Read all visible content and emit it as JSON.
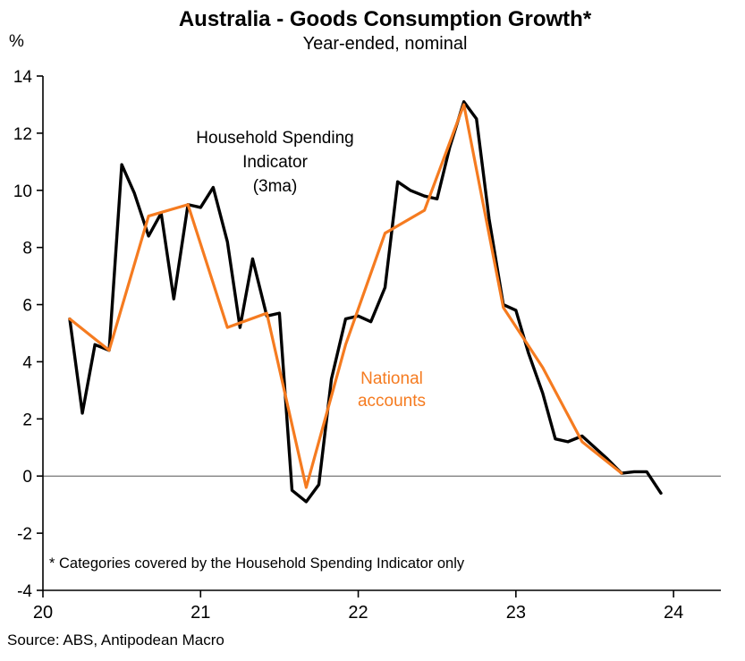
{
  "header": {
    "title": "Australia - Goods Consumption Growth*",
    "subtitle": "Year-ended, nominal",
    "y_unit": "%"
  },
  "annotations": {
    "household_label": "Household Spending Indicator",
    "household_sub": "(3ma)",
    "national_label": "National accounts",
    "footnote": "* Categories covered by the Household Spending Indicator only"
  },
  "source": "Source: ABS, Antipodean Macro",
  "colors": {
    "household_series": "#000000",
    "national_series": "#f57b20",
    "axis": "#000000",
    "zero_line": "#555555"
  },
  "chart_data": {
    "type": "line",
    "title": "Australia - Goods Consumption Growth*",
    "subtitle": "Year-ended, nominal",
    "xlabel": "",
    "ylabel": "%",
    "xlim": [
      20,
      24.3
    ],
    "ylim": [
      -4,
      14
    ],
    "xticks": [
      20,
      21,
      22,
      23,
      24
    ],
    "yticks": [
      -4,
      -2,
      0,
      2,
      4,
      6,
      8,
      10,
      12,
      14
    ],
    "grid": false,
    "zero_line": true,
    "legend_position": "inline-annotations",
    "series": [
      {
        "id": "household-spending-indicator",
        "name": "Household Spending Indicator (3ma)",
        "color": "#000000",
        "width": 3.4,
        "x": [
          20.17,
          20.25,
          20.33,
          20.42,
          20.5,
          20.58,
          20.67,
          20.75,
          20.83,
          20.92,
          21.0,
          21.08,
          21.17,
          21.25,
          21.33,
          21.42,
          21.5,
          21.58,
          21.67,
          21.75,
          21.83,
          21.92,
          22.0,
          22.08,
          22.17,
          22.25,
          22.33,
          22.42,
          22.5,
          22.58,
          22.67,
          22.75,
          22.83,
          22.92,
          23.0,
          23.08,
          23.17,
          23.25,
          23.33,
          23.42,
          23.5,
          23.58,
          23.67,
          23.75,
          23.83,
          23.92
        ],
        "values": [
          5.5,
          2.2,
          4.6,
          4.4,
          10.9,
          9.9,
          8.4,
          9.2,
          6.2,
          9.5,
          9.4,
          10.1,
          8.2,
          5.2,
          7.6,
          5.6,
          5.7,
          -0.5,
          -0.9,
          -0.3,
          3.4,
          5.5,
          5.6,
          5.4,
          6.6,
          10.3,
          10.0,
          9.8,
          9.7,
          11.5,
          13.1,
          12.5,
          9.0,
          6.0,
          5.8,
          4.3,
          2.9,
          1.3,
          1.2,
          1.4,
          1.0,
          0.6,
          0.1,
          0.15,
          0.15,
          -0.6
        ]
      },
      {
        "id": "national-accounts",
        "name": "National accounts",
        "color": "#f57b20",
        "width": 3.2,
        "x": [
          20.17,
          20.42,
          20.67,
          20.92,
          21.17,
          21.42,
          21.67,
          21.92,
          22.17,
          22.42,
          22.67,
          22.92,
          23.17,
          23.42,
          23.67
        ],
        "values": [
          5.5,
          4.4,
          9.1,
          9.5,
          5.2,
          5.7,
          -0.4,
          4.6,
          8.5,
          9.3,
          13.0,
          5.9,
          3.8,
          1.2,
          0.1
        ]
      }
    ]
  }
}
